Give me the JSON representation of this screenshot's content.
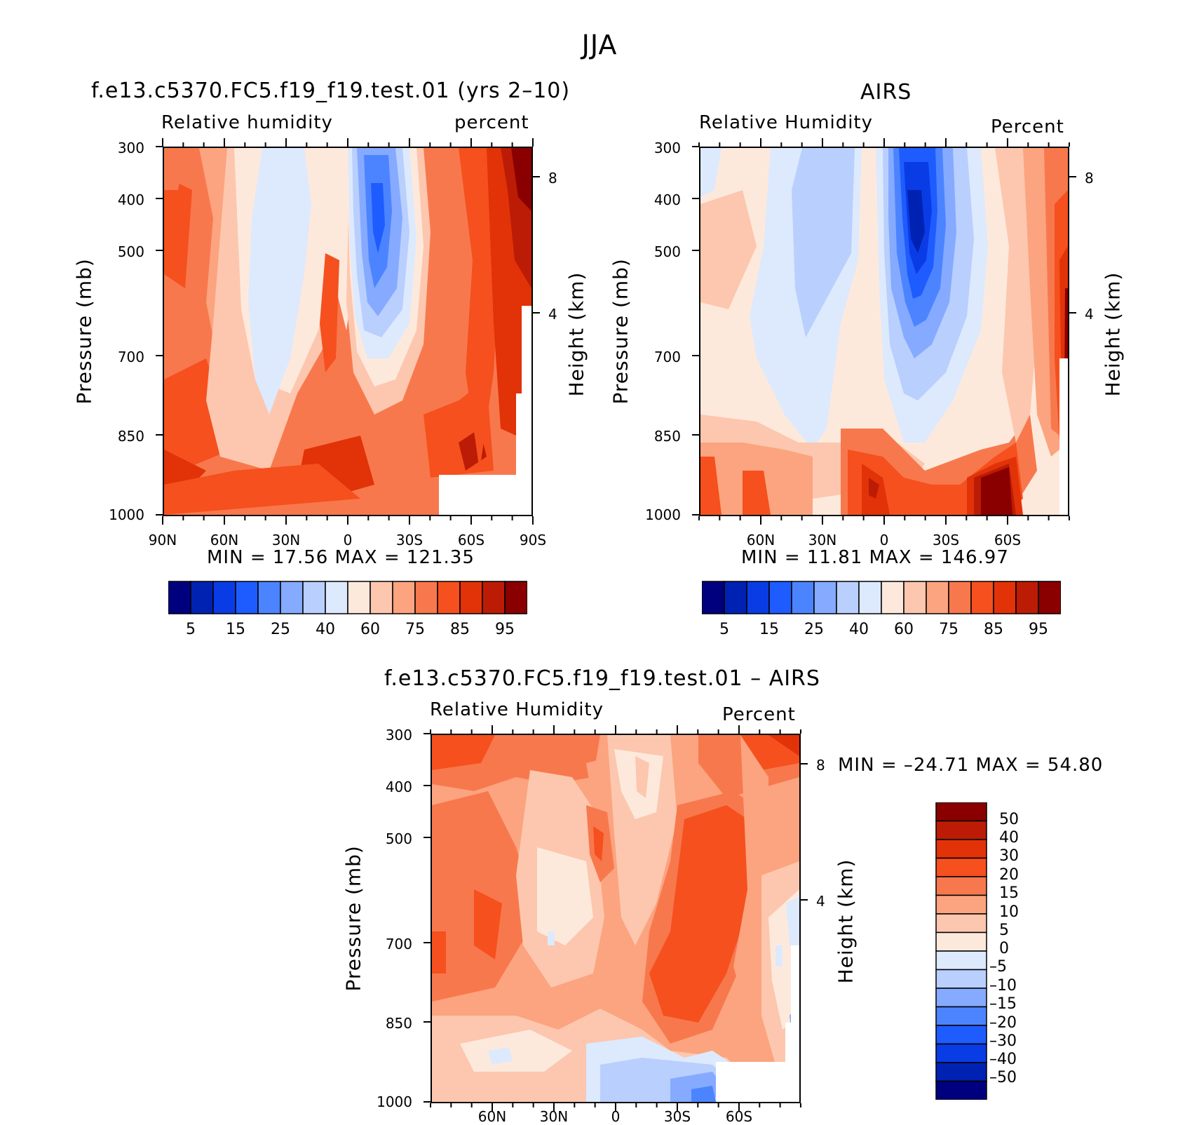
{
  "title": "JJA",
  "chart_data": [
    {
      "type": "heatmap",
      "title": "f.e13.c5370.FC5.f19_f19.test.01 (yrs 2–10)",
      "left_label": "Relative humidity",
      "right_label": "percent",
      "ylabel": "Pressure (mb)",
      "ylabel_right": "Height (km)",
      "y_ticks": [
        "300",
        "400",
        "500",
        "700",
        "850",
        "1000"
      ],
      "y_right_ticks": [
        "8",
        "4"
      ],
      "x_ticks": [
        "90N",
        "60N",
        "30N",
        "0",
        "30S",
        "60S",
        "90S"
      ],
      "min_text": "MIN =   17.56   MAX = 121.35",
      "min": 17.56,
      "max": 121.35,
      "colorbar_labels": [
        "5",
        "15",
        "25",
        "40",
        "60",
        "75",
        "85",
        "95"
      ]
    },
    {
      "type": "heatmap",
      "title": "AIRS",
      "left_label": "Relative Humidity",
      "right_label": "Percent",
      "ylabel": "Pressure (mb)",
      "ylabel_right": "Height (km)",
      "y_ticks": [
        "300",
        "400",
        "500",
        "700",
        "850",
        "1000"
      ],
      "y_right_ticks": [
        "8",
        "4"
      ],
      "x_ticks": [
        "60N",
        "30N",
        "0",
        "30S",
        "60S"
      ],
      "min_text": "MIN =    11.81   MAX = 146.97",
      "min": 11.81,
      "max": 146.97,
      "colorbar_labels": [
        "5",
        "15",
        "25",
        "40",
        "60",
        "75",
        "85",
        "95"
      ]
    },
    {
      "type": "heatmap",
      "title": "f.e13.c5370.FC5.f19_f19.test.01 – AIRS",
      "left_label": "Relative Humidity",
      "right_label": "Percent",
      "ylabel": "Pressure (mb)",
      "ylabel_right": "Height (km)",
      "y_ticks": [
        "300",
        "400",
        "500",
        "700",
        "850",
        "1000"
      ],
      "y_right_ticks": [
        "8",
        "4"
      ],
      "x_ticks": [
        "60N",
        "30N",
        "0",
        "30S",
        "60S"
      ],
      "min_text": "MIN = –24.71   MAX =   54.80",
      "min": -24.71,
      "max": 54.8,
      "colorbar_labels": [
        "50",
        "40",
        "30",
        "20",
        "15",
        "10",
        "5",
        "0",
        "–5",
        "–10",
        "–15",
        "–20",
        "–30",
        "–40",
        "–50"
      ]
    }
  ],
  "colors": {
    "levels16": [
      "#00007f",
      "#0022b3",
      "#0a3ce6",
      "#1f5cff",
      "#4c84ff",
      "#85aaff",
      "#b9cffd",
      "#dde9fd",
      "#fde9dc",
      "#fcc7ae",
      "#fba47f",
      "#f8784d",
      "#f5501e",
      "#e23208",
      "#bc1c05",
      "#8a0000"
    ]
  }
}
